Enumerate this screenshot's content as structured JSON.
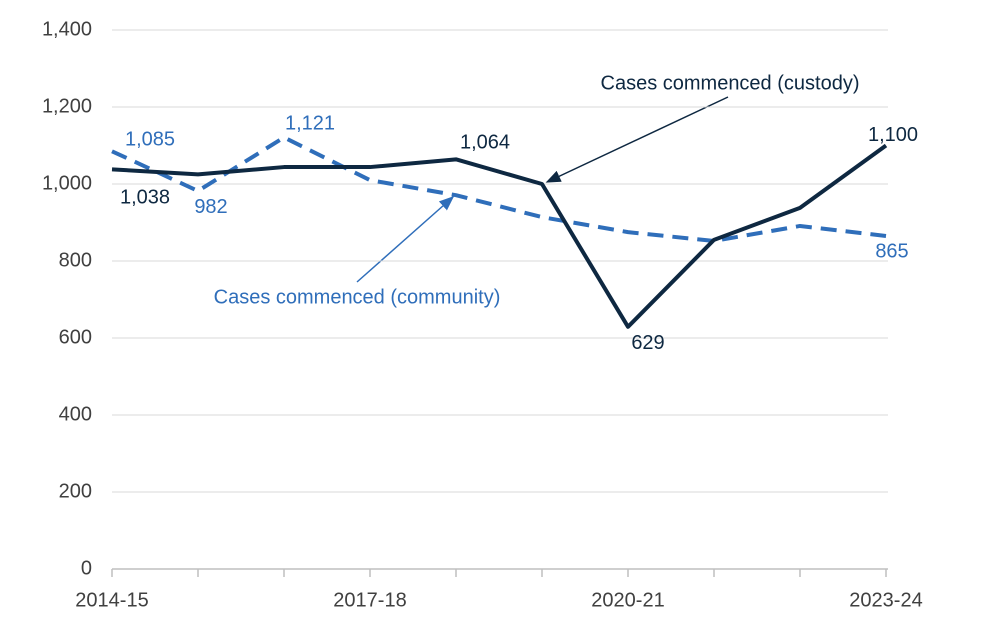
{
  "chart_data": {
    "type": "line",
    "categories": [
      "2014-15",
      null,
      null,
      "2017-18",
      null,
      null,
      "2020-21",
      null,
      null,
      "2023-24"
    ],
    "series": [
      {
        "name": "Cases commenced (custody)",
        "color": "#0e2841",
        "dashed": false,
        "values": [
          1038,
          1025,
          1044,
          1044,
          1064,
          1000,
          629,
          855,
          938,
          1100
        ],
        "value_labels": [
          "1,038",
          null,
          null,
          null,
          "1,064",
          null,
          "629",
          null,
          null,
          "1,100"
        ]
      },
      {
        "name": "Cases commenced (community)",
        "color": "#2f6eba",
        "dashed": true,
        "values": [
          1085,
          982,
          1121,
          1010,
          971,
          914,
          875,
          852,
          891,
          865
        ],
        "value_labels": [
          "1,085",
          "982",
          "1,121",
          null,
          null,
          null,
          null,
          null,
          null,
          "865"
        ]
      }
    ],
    "ylim": [
      0,
      1400
    ],
    "yticks": [
      0,
      200,
      400,
      600,
      800,
      {
        "value": 1000,
        "label": "1,000"
      },
      {
        "value": 1200,
        "label": "1,200"
      },
      {
        "value": 1400,
        "label": "1,400"
      }
    ],
    "grid": true
  }
}
